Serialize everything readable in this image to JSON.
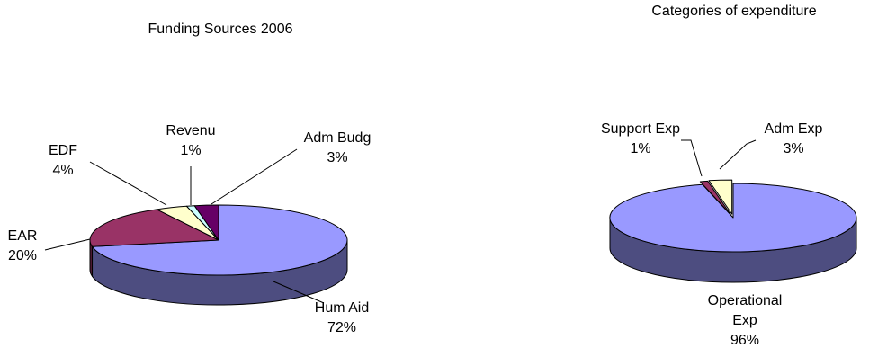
{
  "chart_data": [
    {
      "type": "pie",
      "title": "Funding Sources 2006",
      "slices": [
        {
          "label": "Hum Aid",
          "pct_label": "72%",
          "value": 72,
          "color": "#9999ff"
        },
        {
          "label": "EAR",
          "pct_label": "20%",
          "value": 20,
          "color": "#993366"
        },
        {
          "label": "EDF",
          "pct_label": "4%",
          "value": 4,
          "color": "#ffffcc"
        },
        {
          "label": "Revenu",
          "pct_label": "1%",
          "value": 1,
          "color": "#ccffff"
        },
        {
          "label": "Adm Budg",
          "pct_label": "3%",
          "value": 3,
          "color": "#660066"
        }
      ]
    },
    {
      "type": "pie",
      "title": "Categories of expenditure",
      "slices": [
        {
          "label": "Operational Exp",
          "label_lines": [
            "Operational",
            "Exp"
          ],
          "pct_label": "96%",
          "value": 96,
          "color": "#9999ff"
        },
        {
          "label": "Support Exp",
          "pct_label": "1%",
          "value": 1,
          "color": "#993366"
        },
        {
          "label": "Adm Exp",
          "pct_label": "3%",
          "value": 3,
          "color": "#ffffcc"
        }
      ]
    }
  ]
}
